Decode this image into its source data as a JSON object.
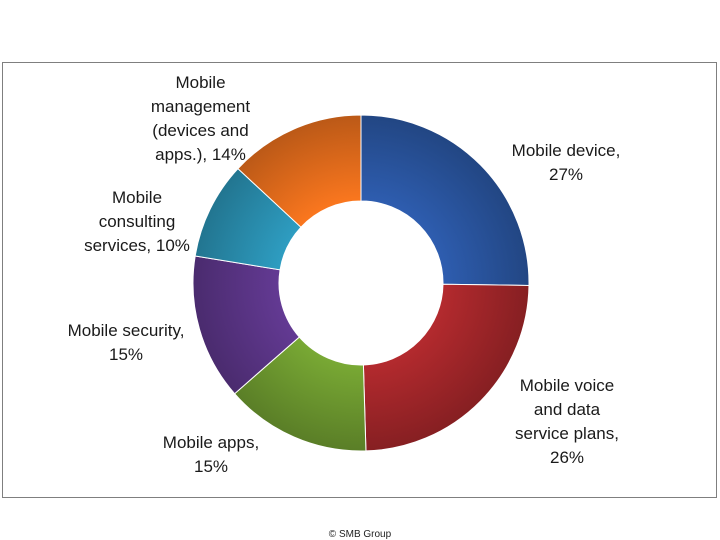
{
  "chart_data": {
    "type": "donut",
    "title": "",
    "slices": [
      {
        "label": "Mobile device,\n27%",
        "category": "Mobile device",
        "value": 27,
        "color": "#2a55a0"
      },
      {
        "label": "Mobile voice\nand data\nservice plans,\n26%",
        "category": "Mobile voice and data service plans",
        "value": 26,
        "color": "#a3262a"
      },
      {
        "label": "Mobile apps,\n15%",
        "category": "Mobile apps",
        "value": 15,
        "color": "#6e9a2f"
      },
      {
        "label": "Mobile security,\n15%",
        "category": "Mobile security",
        "value": 15,
        "color": "#5a3586"
      },
      {
        "label": "Mobile\nconsulting\nservices, 10%",
        "category": "Mobile consulting services",
        "value": 10,
        "color": "#2a8fb0"
      },
      {
        "label": "Mobile\nmanagement\n(devices and\napps.), 14%",
        "category": "Mobile management (devices and apps.)",
        "value": 14,
        "color": "#e46c1c"
      }
    ]
  },
  "footer": {
    "copyright": "© SMB Group"
  }
}
